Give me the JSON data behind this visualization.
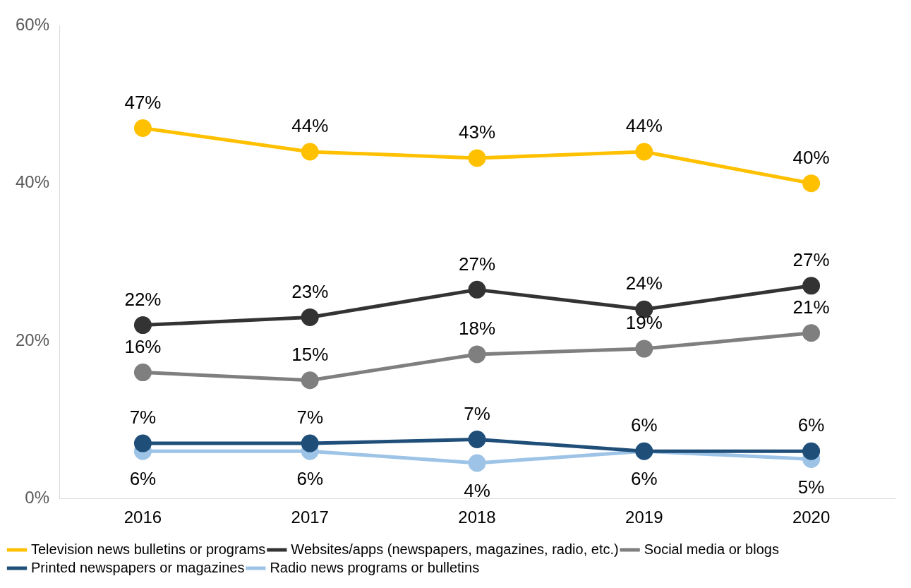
{
  "chart_data": {
    "type": "line",
    "categories": [
      "2016",
      "2017",
      "2018",
      "2019",
      "2020"
    ],
    "series": [
      {
        "name": "Television news bulletins or programs",
        "color": "#ffc000",
        "values": [
          47,
          44,
          43.2,
          44,
          40
        ],
        "value_labels": [
          "47%",
          "44%",
          "43%",
          "44%",
          "40%"
        ]
      },
      {
        "name": "Websites/apps (newspapers, magazines, radio, etc.)",
        "color": "#333333",
        "values": [
          22,
          23,
          26.5,
          24,
          27
        ],
        "value_labels": [
          "22%",
          "23%",
          "27%",
          "24%",
          "27%"
        ]
      },
      {
        "name": "Social media or blogs",
        "color": "#7f7f7f",
        "values": [
          16,
          15,
          18.3,
          19,
          21
        ],
        "value_labels": [
          "16%",
          "15%",
          "18%",
          "19%",
          "21%"
        ]
      },
      {
        "name": "Printed newspapers or magazines",
        "color": "#1f4e79",
        "values": [
          7,
          7,
          7.5,
          6,
          6
        ],
        "value_labels": [
          "7%",
          "7%",
          "7%",
          "6%",
          "6%"
        ]
      },
      {
        "name": "Radio news programs or bulletins",
        "color": "#9dc3e6",
        "values": [
          6,
          6,
          4.5,
          6,
          5
        ],
        "value_labels": [
          "6%",
          "6%",
          "4%",
          "6%",
          "5%"
        ]
      }
    ],
    "ylim": [
      0,
      60
    ],
    "yticks": [
      {
        "value": 0,
        "label": "0%"
      },
      {
        "value": 20,
        "label": "20%"
      },
      {
        "value": 40,
        "label": "40%"
      },
      {
        "value": 60,
        "label": "60%"
      }
    ],
    "grid": false,
    "legend": "bottom",
    "marker": "circle",
    "line_style": "solid"
  }
}
